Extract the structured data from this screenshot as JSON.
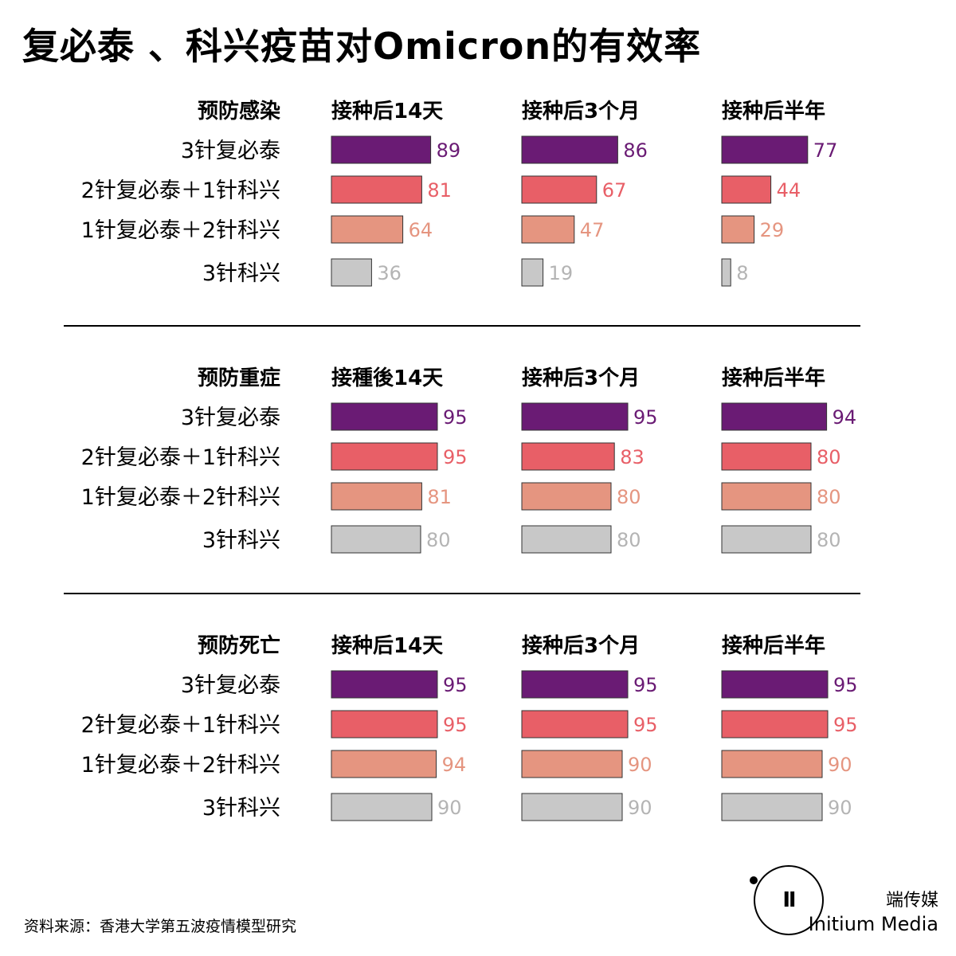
{
  "title": "复必泰 、科兴疫苗对Omicron的有效率",
  "source": "资料来源：香港大学第五波疫情模型研究",
  "brand": {
    "cn": "端传媒",
    "en": "Initium Media",
    "logo_glyph": "𝔼"
  },
  "colors": {
    "series": [
      "#6a1b74",
      "#e85f67",
      "#e59580",
      "#c8c8c8"
    ],
    "labels": [
      "#6a1b74",
      "#e85f67",
      "#e59580",
      "#b4b4b4"
    ],
    "bar_stroke": "#333333",
    "rule": "#000000"
  },
  "chart_data": [
    {
      "type": "bar",
      "title": "预防感染",
      "categories": [
        "3针复必泰",
        "2针复必泰＋1针科兴",
        "1针复必泰＋2针科兴",
        "3针科兴"
      ],
      "panels": [
        {
          "title": "接种后14天",
          "values": [
            89,
            81,
            64,
            36
          ]
        },
        {
          "title": "接种后3个月",
          "values": [
            86,
            67,
            47,
            19
          ]
        },
        {
          "title": "接种后半年",
          "values": [
            77,
            44,
            29,
            8
          ]
        }
      ],
      "xlim": [
        0,
        100
      ]
    },
    {
      "type": "bar",
      "title": "预防重症",
      "categories": [
        "3针复必泰",
        "2针复必泰＋1针科兴",
        "1针复必泰＋2针科兴",
        "3针科兴"
      ],
      "panels": [
        {
          "title": "接種後14天",
          "values": [
            95,
            95,
            81,
            80
          ]
        },
        {
          "title": "接种后3个月",
          "values": [
            95,
            83,
            80,
            80
          ]
        },
        {
          "title": "接种后半年",
          "values": [
            94,
            80,
            80,
            80
          ]
        }
      ],
      "xlim": [
        0,
        100
      ]
    },
    {
      "type": "bar",
      "title": "预防死亡",
      "categories": [
        "3针复必泰",
        "2针复必泰＋1针科兴",
        "1针复必泰＋2针科兴",
        "3针科兴"
      ],
      "panels": [
        {
          "title": "接种后14天",
          "values": [
            95,
            95,
            94,
            90
          ]
        },
        {
          "title": "接种后3个月",
          "values": [
            95,
            95,
            90,
            90
          ]
        },
        {
          "title": "接种后半年",
          "values": [
            95,
            95,
            90,
            90
          ]
        }
      ],
      "xlim": [
        0,
        100
      ]
    }
  ]
}
